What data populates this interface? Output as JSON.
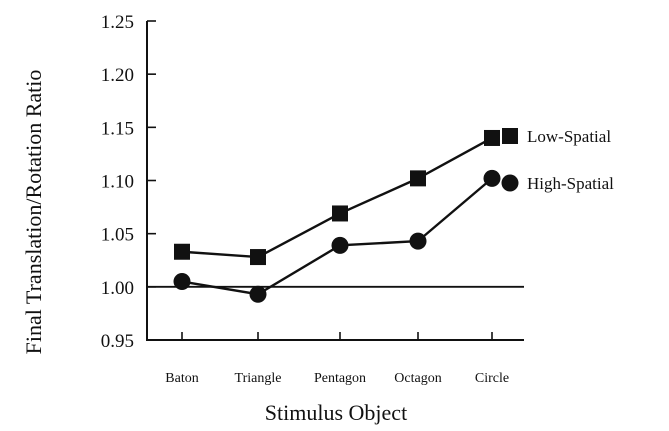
{
  "chart_data": {
    "type": "line",
    "categories": [
      "Baton",
      "Triangle",
      "Pentagon",
      "Octagon",
      "Circle"
    ],
    "series": [
      {
        "name": "Low-Spatial",
        "marker": "square",
        "values": [
          1.033,
          1.028,
          1.069,
          1.102,
          1.14
        ]
      },
      {
        "name": "High-Spatial",
        "marker": "circle",
        "values": [
          1.005,
          0.993,
          1.039,
          1.043,
          1.102
        ]
      }
    ],
    "title": "",
    "xlabel": "Stimulus Object",
    "ylabel": "Final Translation/Rotation Ratio",
    "ylim": [
      0.95,
      1.25
    ],
    "yticks": [
      0.95,
      1.0,
      1.05,
      1.1,
      1.15,
      1.2,
      1.25
    ],
    "ytick_labels": [
      "0.95",
      "1.00",
      "1.05",
      "1.10",
      "1.15",
      "1.20",
      "1.25"
    ],
    "reference_line": 1.0,
    "grid": false,
    "legend_position": "right",
    "color": "#111111"
  }
}
